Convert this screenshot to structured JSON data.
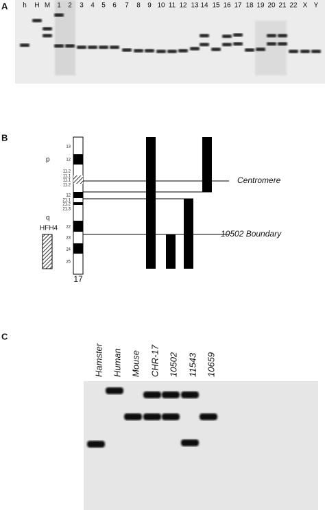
{
  "panels": [
    {
      "label": "A",
      "lanes": [
        "h",
        "H",
        "M",
        "1",
        "2",
        "3",
        "4",
        "5",
        "6",
        "7",
        "8",
        "9",
        "10",
        "11",
        "12",
        "13",
        "14",
        "15",
        "16",
        "17",
        "18",
        "19",
        "20",
        "21",
        "22",
        "X",
        "Y"
      ]
    },
    {
      "label": "B",
      "bands": [
        "13",
        "12",
        "11.2",
        "11.1",
        "11.1",
        "11.2",
        "12",
        "21.1",
        "21.2",
        "21.3",
        "22",
        "23",
        "24",
        "25"
      ],
      "arm_p": "p",
      "arm_q": "q",
      "gene": "HFH4",
      "chromosome": "17",
      "annotations": [
        "Centromere",
        "10502 Boundary"
      ]
    },
    {
      "label": "C",
      "lanes": [
        "Hamster",
        "Human",
        "Mouse",
        "CHR-17",
        "10502",
        "11543",
        "10659"
      ]
    }
  ]
}
